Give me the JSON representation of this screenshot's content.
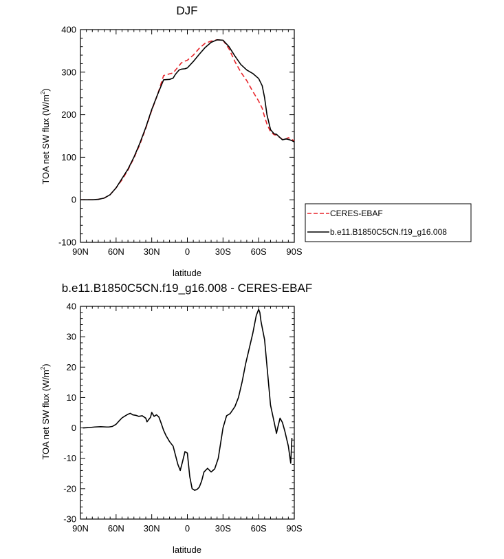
{
  "chart_data": [
    {
      "type": "line",
      "title": "DJF",
      "xlabel": "latitude",
      "ylabel": "TOA net SW flux (W/m2)",
      "ylabel_main": "TOA net SW flux (W/m",
      "ylabel_sup": "2",
      "ylabel_close": ")",
      "x_direction": "90N to 90S",
      "xlim": [
        90,
        -90
      ],
      "ylim": [
        -100,
        400
      ],
      "xticks": [
        90,
        60,
        30,
        0,
        -30,
        -60,
        -90
      ],
      "xtick_labels": [
        "90N",
        "60N",
        "30N",
        "0",
        "30S",
        "60S",
        "90S"
      ],
      "yticks": [
        -100,
        0,
        100,
        200,
        300,
        400
      ],
      "ytick_labels": [
        "-100",
        "0",
        "100",
        "200",
        "300",
        "400"
      ],
      "grid": false,
      "legend_position": "right-outside",
      "series": [
        {
          "name": "CERES-EBAF",
          "color": "#e8242a",
          "dash": "dashed",
          "x": [
            90,
            85,
            80,
            75,
            70,
            65,
            60,
            55,
            50,
            45,
            40,
            35,
            30,
            25,
            20,
            15,
            12,
            10,
            7,
            5,
            2,
            0,
            -5,
            -10,
            -15,
            -20,
            -25,
            -30,
            -35,
            -40,
            -45,
            -50,
            -55,
            -60,
            -63,
            -65,
            -67,
            -70,
            -73,
            -75,
            -80,
            -83,
            -85,
            -88,
            -90
          ],
          "y": [
            0,
            0,
            0,
            1,
            4,
            12,
            28,
            47,
            70,
            98,
            130,
            168,
            210,
            248,
            292,
            296,
            298,
            305,
            315,
            322,
            326,
            328,
            340,
            356,
            368,
            373,
            376,
            375,
            355,
            325,
            300,
            280,
            255,
            232,
            215,
            195,
            178,
            160,
            153,
            152,
            142,
            143,
            146,
            142,
            138
          ]
        },
        {
          "name": "b.e11.B1850C5CN.f19_g16.008",
          "color": "#000000",
          "dash": "solid",
          "x": [
            90,
            85,
            80,
            75,
            70,
            65,
            60,
            55,
            50,
            45,
            40,
            35,
            30,
            25,
            20,
            15,
            12,
            10,
            7,
            5,
            2,
            0,
            -5,
            -10,
            -15,
            -20,
            -25,
            -30,
            -35,
            -40,
            -45,
            -50,
            -55,
            -60,
            -63,
            -65,
            -67,
            -70,
            -73,
            -75,
            -80,
            -83,
            -85,
            -88,
            -90
          ],
          "y": [
            0,
            0,
            0,
            1,
            4,
            12,
            28,
            50,
            72,
            100,
            133,
            170,
            212,
            248,
            282,
            283,
            286,
            295,
            305,
            307,
            308,
            310,
            325,
            342,
            358,
            370,
            376,
            375,
            360,
            338,
            318,
            305,
            297,
            285,
            268,
            240,
            200,
            165,
            155,
            154,
            141,
            143,
            142,
            139,
            136
          ]
        }
      ]
    },
    {
      "type": "line",
      "title": "b.e11.B1850C5CN.f19_g16.008 - CERES-EBAF",
      "xlabel": "latitude",
      "ylabel": "TOA net SW flux (W/m2)",
      "ylabel_main": "TOA net SW flux (W/m",
      "ylabel_sup": "2",
      "ylabel_close": ")",
      "xlim": [
        90,
        -90
      ],
      "ylim": [
        -30,
        40
      ],
      "xticks": [
        90,
        60,
        30,
        0,
        -30,
        -60,
        -90
      ],
      "xtick_labels": [
        "90N",
        "60N",
        "30N",
        "0",
        "30S",
        "60S",
        "90S"
      ],
      "yticks": [
        -30,
        -20,
        -10,
        0,
        10,
        20,
        30,
        40
      ],
      "ytick_labels": [
        "-30",
        "-20",
        "-10",
        "0",
        "10",
        "20",
        "30",
        "40"
      ],
      "grid": false,
      "series": [
        {
          "name": "",
          "color": "#000000",
          "dash": "solid",
          "x": [
            88,
            83,
            78,
            73,
            68,
            66,
            63,
            60,
            57,
            55,
            53,
            50,
            48,
            46,
            43,
            41,
            38,
            35,
            34,
            33,
            31,
            30,
            28,
            26,
            24,
            22,
            20,
            18,
            15,
            12,
            10,
            8,
            6,
            4,
            2,
            0,
            -2,
            -4,
            -6,
            -8,
            -10,
            -12,
            -14,
            -17,
            -20,
            -23,
            -26,
            -28,
            -30,
            -33,
            -36,
            -40,
            -43,
            -46,
            -49,
            -52,
            -55,
            -58,
            -60,
            -61,
            -62,
            -65,
            -70,
            -73,
            -75,
            -76,
            -78,
            -80,
            -82,
            -85,
            -87,
            -88
          ],
          "y": [
            0,
            0.1,
            0.3,
            0.4,
            0.3,
            0.3,
            0.5,
            1.2,
            2.5,
            3.3,
            3.8,
            4.5,
            4.8,
            4.3,
            4.1,
            3.8,
            4.0,
            3.2,
            2.0,
            2.5,
            3.5,
            5.1,
            3.8,
            4.3,
            3.6,
            1.5,
            -0.8,
            -2.5,
            -4.5,
            -6.0,
            -9.0,
            -12.0,
            -14.0,
            -11.0,
            -7.8,
            -8.3,
            -16.0,
            -20.0,
            -20.5,
            -20.3,
            -19.5,
            -17.5,
            -14.5,
            -13.3,
            -14.5,
            -13.5,
            -10.0,
            -5.0,
            0.0,
            4.0,
            4.7,
            7.0,
            10.0,
            15.0,
            21.0,
            26.0,
            31.0,
            37.0,
            39.0,
            38.0,
            35.0,
            29.0,
            7.5,
            2.0,
            -1.8,
            0.0,
            3.2,
            1.8,
            -1.0,
            -6.0,
            -11.6,
            -3.3
          ]
        }
      ]
    }
  ]
}
